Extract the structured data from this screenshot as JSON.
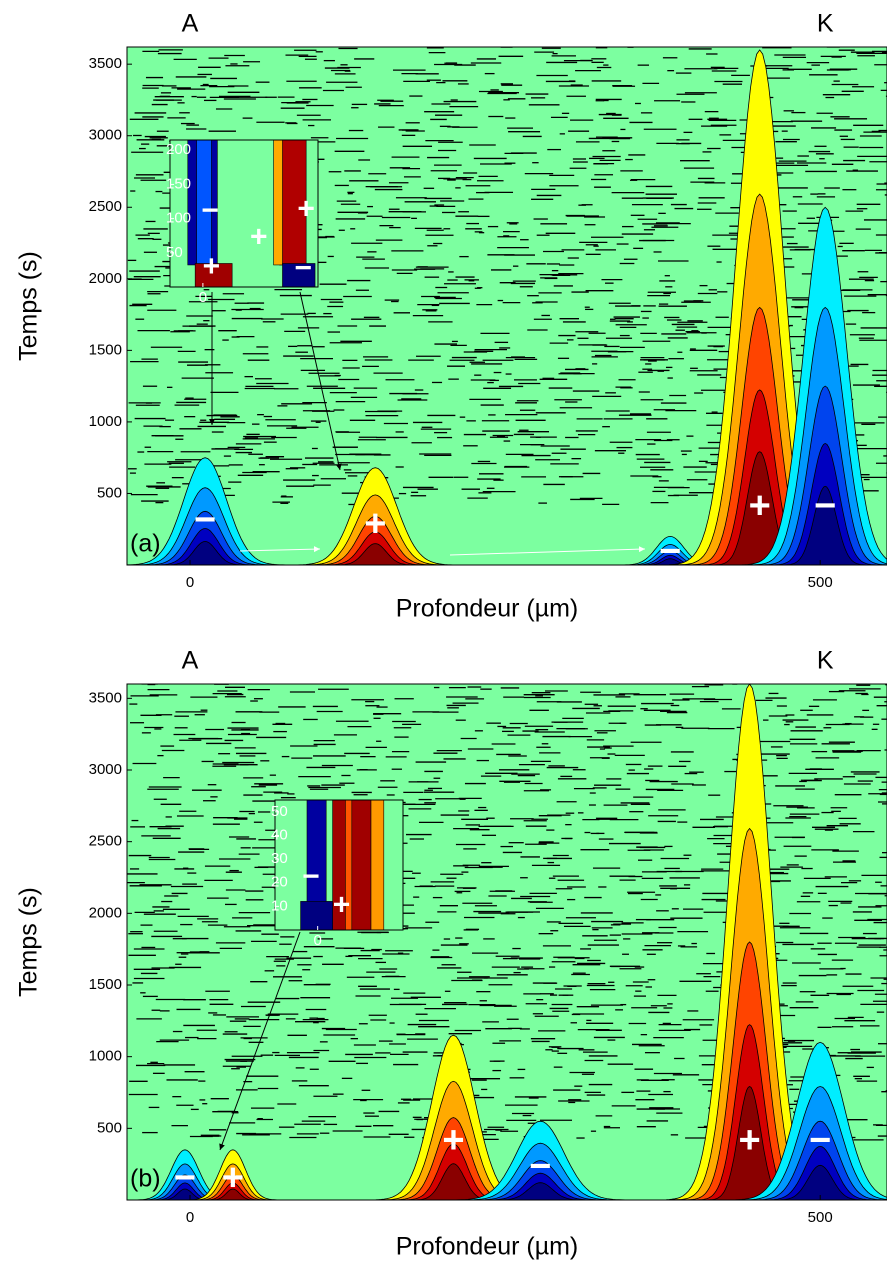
{
  "chart_data": [
    {
      "type": "heatmap",
      "panel_label": "(a)",
      "x_label": "Profondeur (µm)",
      "y_label": "Temps (s)",
      "xlim": [
        -50,
        553
      ],
      "xticks": [
        0,
        500
      ],
      "ylim": [
        0,
        3620
      ],
      "yticks": [
        500,
        1000,
        1500,
        2000,
        2500,
        3000,
        3500
      ],
      "annotations": [
        {
          "text": "A",
          "x": 0
        },
        {
          "text": "K",
          "x": 504
        }
      ],
      "peaks": [
        {
          "x": 12,
          "width": 22,
          "top": 750,
          "label": "−"
        },
        {
          "x": 147,
          "width": 22,
          "top": 680,
          "label": "+"
        },
        {
          "x": 381,
          "width": 14,
          "top": 200,
          "label": "−"
        },
        {
          "x": 452,
          "width": 24,
          "top": 3600,
          "label": "+"
        },
        {
          "x": 504,
          "width": 22,
          "top": 2500,
          "label": "−"
        }
      ],
      "inset": {
        "xlim": [
          -10,
          35
        ],
        "xticks": [
          0
        ],
        "ylim": [
          0,
          215
        ],
        "yticks": [
          50,
          100,
          150,
          200
        ],
        "signs": [
          "−",
          "+",
          "+",
          "+",
          "−"
        ]
      }
    },
    {
      "type": "heatmap",
      "panel_label": "(b)",
      "x_label": "Profondeur (µm)",
      "y_label": "Temps (s)",
      "xlim": [
        -50,
        553
      ],
      "xticks": [
        0,
        500
      ],
      "ylim": [
        0,
        3600
      ],
      "yticks": [
        500,
        1000,
        1500,
        2000,
        2500,
        3000,
        3500
      ],
      "annotations": [
        {
          "text": "A",
          "x": 0
        },
        {
          "text": "K",
          "x": 504
        }
      ],
      "peaks": [
        {
          "x": -4,
          "width": 14,
          "top": 350,
          "label": "−"
        },
        {
          "x": 34,
          "width": 13,
          "top": 350,
          "label": "+"
        },
        {
          "x": 209,
          "width": 22,
          "top": 1150,
          "label": "+"
        },
        {
          "x": 278,
          "width": 24,
          "top": 550,
          "label": "−"
        },
        {
          "x": 444,
          "width": 22,
          "top": 3600,
          "label": "+"
        },
        {
          "x": 500,
          "width": 24,
          "top": 1100,
          "label": "−"
        }
      ],
      "inset": {
        "xlim": [
          -10,
          20
        ],
        "xticks": [
          0
        ],
        "ylim": [
          0,
          55
        ],
        "yticks": [
          10,
          20,
          30,
          40,
          50
        ],
        "signs": [
          "−",
          "+"
        ]
      }
    }
  ]
}
